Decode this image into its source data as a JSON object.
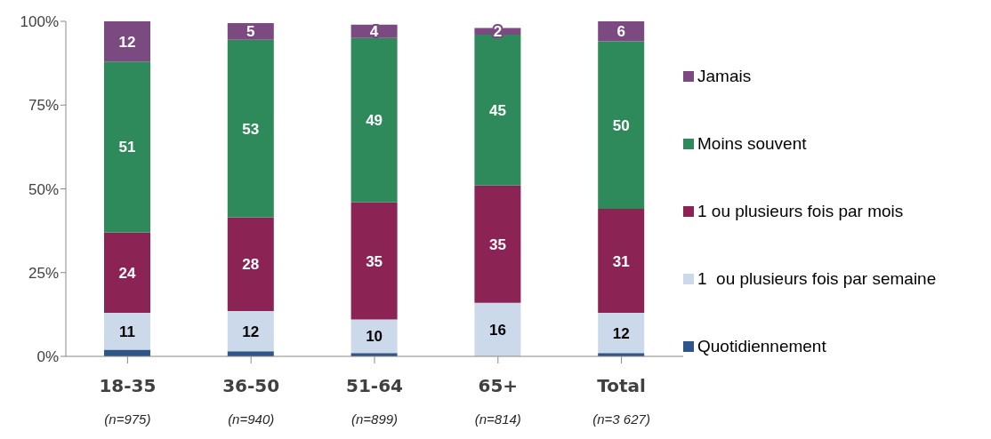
{
  "chart_data": {
    "type": "bar",
    "stacked": true,
    "categories": [
      "18-35\n(n=975)",
      "36-50\n(n=940)",
      "51-64\n(n=899)",
      "65+\n(n=814)",
      "Total\n(n=3 627)"
    ],
    "series": [
      {
        "name": "Quotidiennement",
        "color": "#2f5688",
        "values": [
          2,
          1.5,
          1,
          0,
          1
        ],
        "value_labels": [
          null,
          null,
          null,
          null,
          null
        ]
      },
      {
        "name": "1  ou plusieurs fois par semaine",
        "color": "#cbd9ea",
        "values": [
          11,
          12,
          10,
          16,
          12
        ],
        "value_labels": [
          "11",
          "12",
          "10",
          "16",
          "12"
        ]
      },
      {
        "name": "1 ou plusieurs fois par mois",
        "color": "#8c2355",
        "values": [
          24,
          28,
          35,
          35,
          31
        ],
        "value_labels": [
          "24",
          "28",
          "35",
          "35",
          "31"
        ]
      },
      {
        "name": "Moins souvent",
        "color": "#2e8a5a",
        "values": [
          51,
          53,
          49,
          45,
          50
        ],
        "value_labels": [
          "51",
          "53",
          "49",
          "45",
          "50"
        ]
      },
      {
        "name": "Jamais",
        "color": "#7a4a80",
        "values": [
          12,
          5,
          4,
          2,
          6
        ],
        "value_labels": [
          "12",
          "5",
          "4",
          "2",
          "6"
        ]
      }
    ],
    "ylim": [
      0,
      100
    ],
    "yticks": [
      {
        "value": 0,
        "label": "0%"
      },
      {
        "value": 25,
        "label": "25%"
      },
      {
        "value": 50,
        "label": "50%"
      },
      {
        "value": 75,
        "label": "75%"
      },
      {
        "value": 100,
        "label": "100%"
      }
    ],
    "grid": false,
    "legend": "right"
  }
}
